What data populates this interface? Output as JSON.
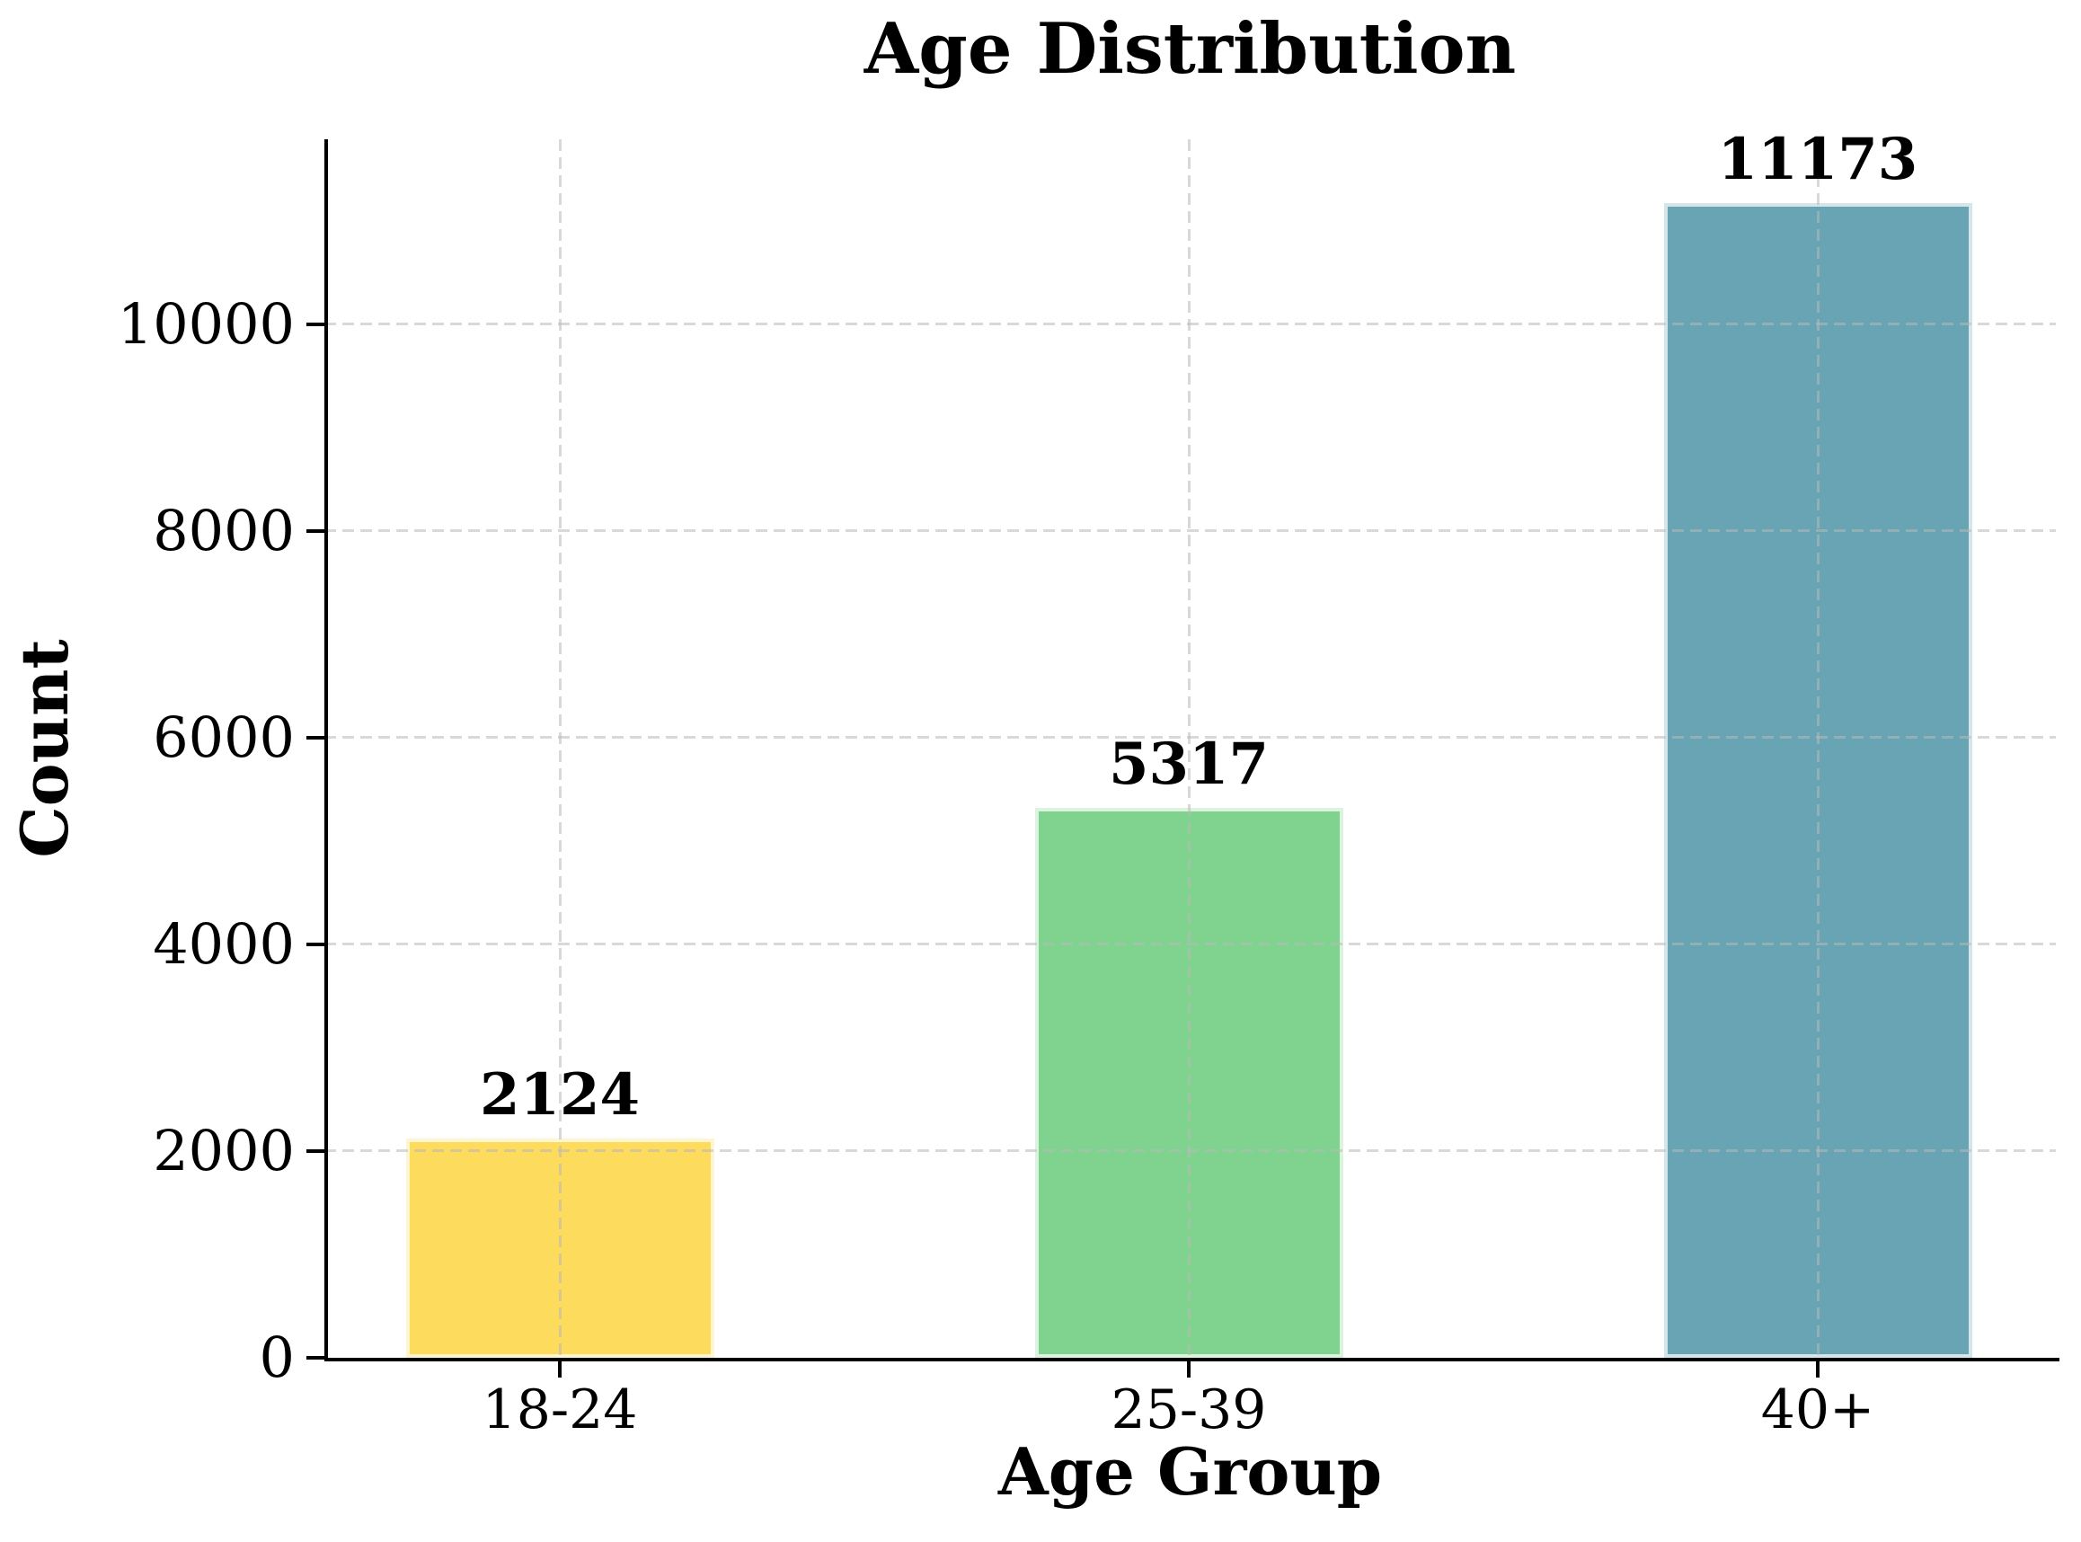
{
  "chart_data": {
    "type": "bar",
    "title": "Age Distribution",
    "xlabel": "Age Group",
    "ylabel": "Count",
    "categories": [
      "18-24",
      "25-39",
      "40+"
    ],
    "values": [
      2124,
      5317,
      11173
    ],
    "bar_value_labels": [
      "2124",
      "5317",
      "11173"
    ],
    "bar_colors": [
      "#FDDB5C",
      "#80D38E",
      "#68A4B4"
    ],
    "ylim": [
      0,
      11790
    ],
    "yticks": [
      0,
      2000,
      4000,
      6000,
      8000,
      10000
    ],
    "ytick_labels": [
      "0",
      "2000",
      "4000",
      "6000",
      "8000",
      "10000"
    ],
    "grid": "dashed gridlines on both axes, drawn above bars",
    "gridline_color": "#DBDBDB",
    "axis_color": "#000000",
    "background_color": "#ffffff",
    "legend_position": "none"
  }
}
